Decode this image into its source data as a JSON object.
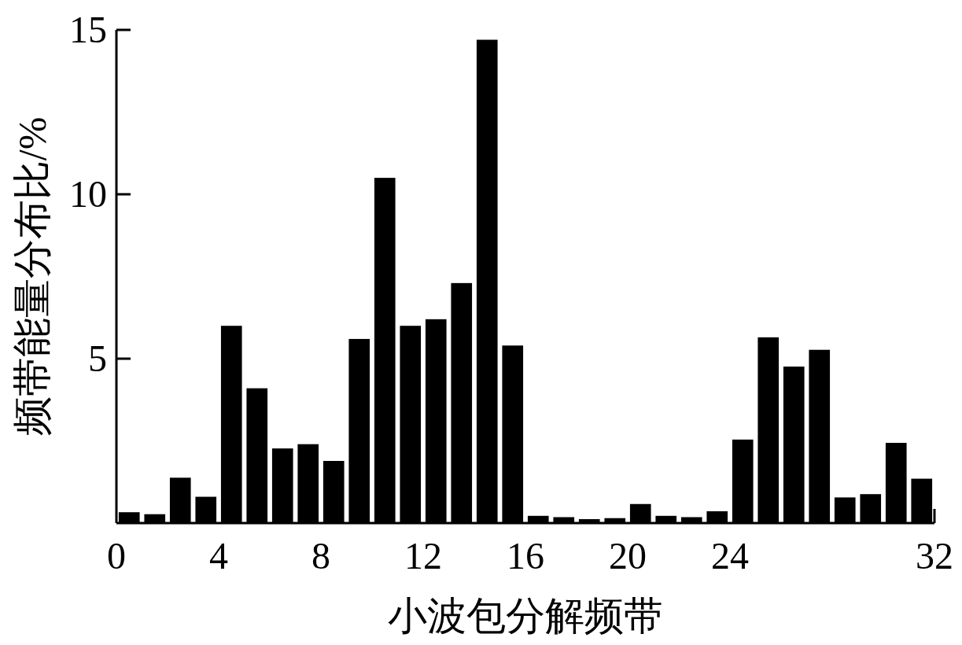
{
  "chart_data": {
    "type": "bar",
    "xlabel": "小波包分解频带",
    "ylabel": "频带能量分布比/%",
    "color": "#000000",
    "x": [
      0.5,
      1.5,
      2.5,
      3.5,
      4.5,
      5.5,
      6.5,
      7.5,
      8.5,
      9.5,
      10.5,
      11.5,
      12.5,
      13.5,
      14.5,
      15.5,
      16.5,
      17.5,
      18.5,
      19.5,
      20.5,
      21.5,
      22.5,
      23.5,
      24.5,
      25.5,
      26.5,
      27.5,
      28.5,
      29.5,
      30.5,
      31.5
    ],
    "values": [
      0.33,
      0.27,
      1.38,
      0.8,
      6.0,
      4.1,
      2.27,
      2.4,
      1.89,
      5.6,
      10.5,
      6.0,
      6.2,
      7.3,
      14.7,
      5.4,
      0.22,
      0.18,
      0.12,
      0.15,
      0.58,
      0.22,
      0.18,
      0.36,
      2.54,
      5.65,
      4.76,
      5.27,
      0.78,
      0.88,
      2.44,
      1.35
    ],
    "xlim": [
      0,
      32
    ],
    "ylim": [
      0,
      15
    ],
    "xticks": [
      0,
      4,
      8,
      12,
      16,
      20,
      24,
      32
    ],
    "yticks": [
      5,
      10,
      15
    ]
  }
}
